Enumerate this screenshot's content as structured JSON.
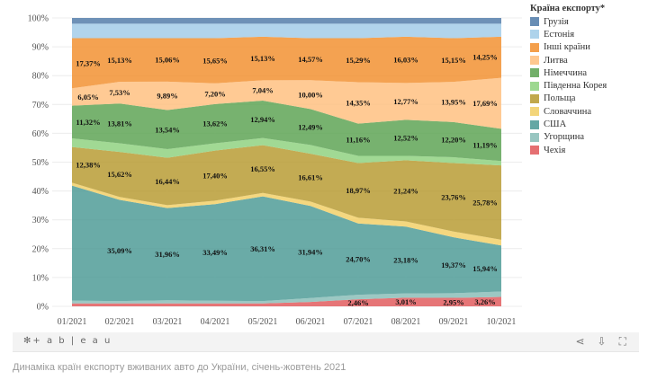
{
  "chart_data": {
    "type": "area",
    "stacked": true,
    "normalized": true,
    "x": [
      "01/2021",
      "02/2021",
      "03/2021",
      "04/2021",
      "05/2021",
      "06/2021",
      "07/2021",
      "08/2021",
      "09/2021",
      "10/2021"
    ],
    "y_ticks": [
      "0%",
      "10%",
      "20%",
      "30%",
      "40%",
      "50%",
      "60%",
      "70%",
      "80%",
      "90%",
      "100%"
    ],
    "ylim": [
      0,
      100
    ],
    "legend_title": "Країна експорту*",
    "legend_position": "right",
    "series": [
      {
        "name": "Грузія",
        "color": "#4e79a7",
        "values": [
          2,
          2,
          2,
          2,
          2,
          2,
          2,
          2,
          2,
          2
        ],
        "show": [
          false,
          false,
          false,
          false,
          false,
          false,
          false,
          false,
          false,
          false
        ]
      },
      {
        "name": "Естонія",
        "color": "#a0cbe8",
        "values": [
          5,
          5,
          5,
          5,
          4.5,
          5,
          5,
          4.5,
          5,
          4.5
        ],
        "show": [
          false,
          false,
          false,
          false,
          false,
          false,
          false,
          false,
          false,
          false
        ]
      },
      {
        "name": "Інші країни",
        "color": "#f28e2b",
        "values": [
          17.37,
          15.13,
          15.06,
          15.65,
          15.13,
          14.57,
          15.29,
          16.03,
          15.15,
          14.25
        ],
        "show": [
          true,
          true,
          true,
          true,
          true,
          true,
          true,
          true,
          true,
          true
        ]
      },
      {
        "name": "Литва",
        "color": "#ffbe7d",
        "values": [
          6.05,
          7.53,
          9.89,
          7.2,
          7.04,
          10.0,
          14.35,
          12.77,
          13.95,
          17.69
        ],
        "show": [
          true,
          true,
          true,
          true,
          true,
          true,
          true,
          true,
          true,
          true
        ]
      },
      {
        "name": "Німеччина",
        "color": "#59a14f",
        "values": [
          11.32,
          13.81,
          13.54,
          13.62,
          12.94,
          12.49,
          11.16,
          12.52,
          12.2,
          11.19
        ],
        "show": [
          true,
          true,
          true,
          true,
          true,
          true,
          true,
          true,
          true,
          true
        ]
      },
      {
        "name": "Південна Корея",
        "color": "#8cd17d",
        "values": [
          3,
          3,
          3,
          2.5,
          2.5,
          3,
          2.5,
          1.5,
          2,
          1.5
        ],
        "show": [
          false,
          false,
          false,
          false,
          false,
          false,
          false,
          false,
          false,
          false
        ]
      },
      {
        "name": "Польща",
        "color": "#b6992d",
        "values": [
          12.38,
          15.62,
          16.44,
          17.4,
          16.55,
          16.61,
          18.97,
          21.24,
          23.76,
          25.78
        ],
        "show": [
          true,
          true,
          true,
          true,
          true,
          true,
          true,
          true,
          true,
          true
        ]
      },
      {
        "name": "Словаччина",
        "color": "#f1ce63",
        "values": [
          1,
          1,
          1,
          1.2,
          1.2,
          1.5,
          2,
          1.8,
          2,
          2
        ],
        "show": [
          false,
          false,
          false,
          false,
          false,
          false,
          false,
          false,
          false,
          false
        ]
      },
      {
        "name": "США",
        "color": "#499894",
        "values": [
          39.9,
          35.09,
          31.96,
          33.49,
          36.31,
          31.94,
          24.7,
          23.18,
          19.37,
          15.94
        ],
        "show": [
          false,
          true,
          true,
          true,
          true,
          true,
          true,
          true,
          true,
          true
        ]
      },
      {
        "name": "Угорщина",
        "color": "#86bcb6",
        "values": [
          0.98,
          0.82,
          1.11,
          0.94,
          0.83,
          1.39,
          1.57,
          1.45,
          1.62,
          1.89
        ],
        "show": [
          false,
          false,
          false,
          false,
          false,
          false,
          false,
          false,
          false,
          false
        ]
      },
      {
        "name": "Чехія",
        "color": "#e15759",
        "values": [
          1,
          1,
          1,
          1,
          1,
          1.5,
          2.46,
          3.01,
          2.95,
          3.26
        ],
        "show": [
          false,
          false,
          false,
          false,
          false,
          false,
          true,
          true,
          true,
          true
        ]
      }
    ]
  },
  "toolbar": {
    "logo": "+ a b | e a u",
    "share_icon": "share-icon",
    "download_icon": "download-icon",
    "fullscreen_icon": "fullscreen-icon"
  },
  "caption": "Динаміка країн експорту вживаних авто до України, січень-жовтень 2021"
}
